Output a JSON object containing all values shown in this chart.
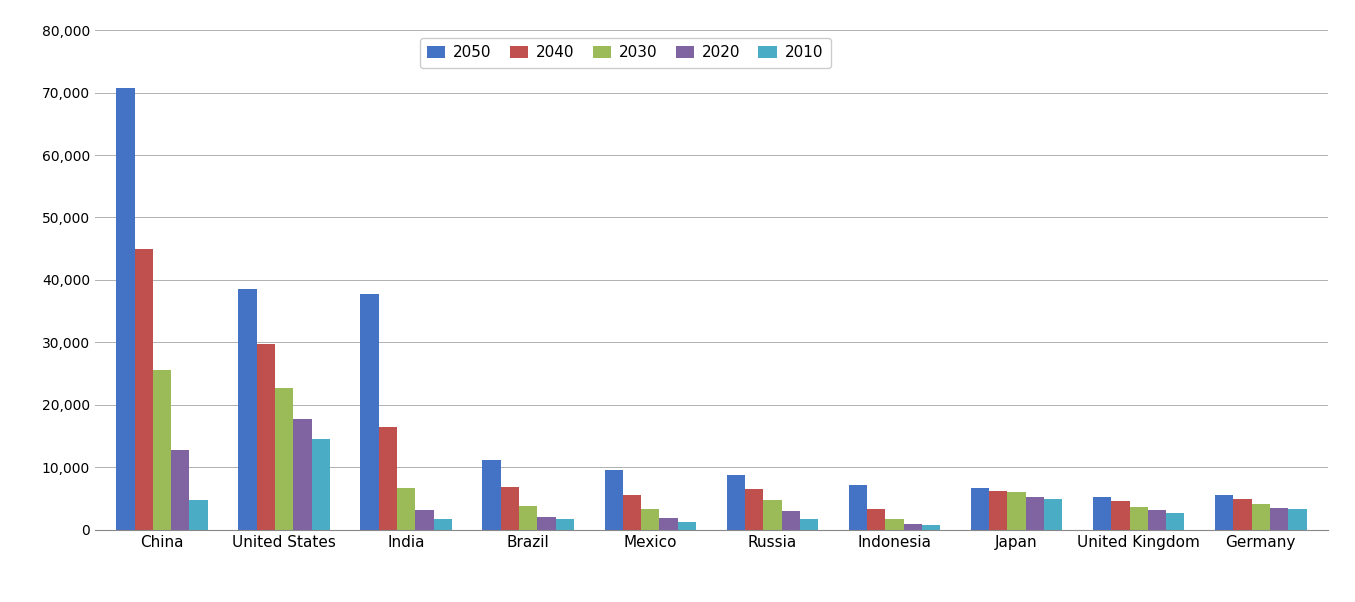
{
  "countries": [
    "China",
    "United States",
    "India",
    "Brazil",
    "Mexico",
    "Russia",
    "Indonesia",
    "Japan",
    "United Kingdom",
    "Germany"
  ],
  "years": [
    "2050",
    "2040",
    "2030",
    "2020",
    "2010"
  ],
  "colors": [
    "#4472C4",
    "#C0504D",
    "#9BBB59",
    "#8064A2",
    "#4BACC6"
  ],
  "values": {
    "China": [
      70710,
      44900,
      25500,
      12700,
      4700
    ],
    "United States": [
      38600,
      29800,
      22700,
      17800,
      14600
    ],
    "India": [
      37700,
      16400,
      6700,
      3100,
      1700
    ],
    "Brazil": [
      11200,
      6900,
      3800,
      2000,
      1700
    ],
    "Mexico": [
      9500,
      5600,
      3300,
      1900,
      1300
    ],
    "Russia": [
      8700,
      6500,
      4700,
      3000,
      1700
    ],
    "Indonesia": [
      7200,
      3300,
      1700,
      900,
      700
    ],
    "Japan": [
      6700,
      6200,
      6000,
      5200,
      5000
    ],
    "United Kingdom": [
      5200,
      4600,
      3700,
      3100,
      2700
    ],
    "Germany": [
      5500,
      4900,
      4100,
      3500,
      3300
    ]
  },
  "ylim": [
    0,
    80000
  ],
  "yticks": [
    0,
    10000,
    20000,
    30000,
    40000,
    50000,
    60000,
    70000,
    80000
  ],
  "background_color": "#ffffff",
  "grid_color": "#b0b0b0",
  "bar_width": 0.15
}
